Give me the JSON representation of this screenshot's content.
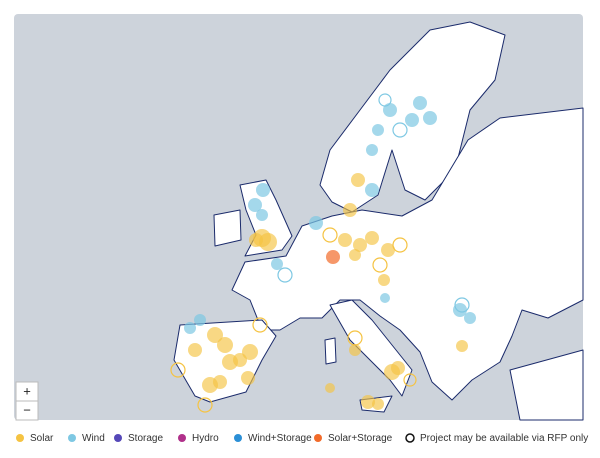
{
  "zoom": {
    "in": "+",
    "out": "−"
  },
  "legend": [
    {
      "label": "Solar",
      "color": "#f5c342",
      "kind": "filled"
    },
    {
      "label": "Wind",
      "color": "#7ec8e3",
      "kind": "filled"
    },
    {
      "label": "Storage",
      "color": "#5548b8",
      "kind": "filled"
    },
    {
      "label": "Hydro",
      "color": "#b0308a",
      "kind": "filled"
    },
    {
      "label": "Wind+Storage",
      "color": "#2b8fd6",
      "kind": "filled"
    },
    {
      "label": "Solar+Storage",
      "color": "#f26b2a",
      "kind": "filled"
    },
    {
      "label": "Project may be available via RFP only",
      "color": "#111111",
      "kind": "hollow"
    }
  ]
}
